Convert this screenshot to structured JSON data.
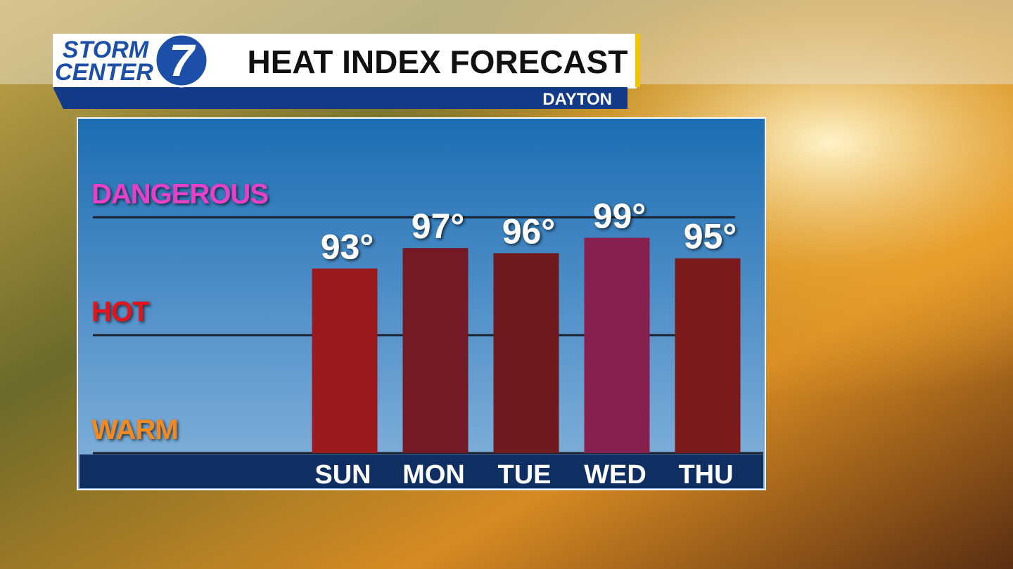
{
  "logo": {
    "line1": "STORM",
    "line2": "CENTER",
    "number": "7"
  },
  "chart_data": {
    "type": "bar",
    "title": "HEAT INDEX FORECAST",
    "subtitle": "DAYTON",
    "categories": [
      "SUN",
      "MON",
      "TUE",
      "WED",
      "THU"
    ],
    "values": [
      93,
      97,
      96,
      99,
      95
    ],
    "value_labels": [
      "93°",
      "97°",
      "96°",
      "99°",
      "95°"
    ],
    "colors": [
      "#9b1a1d",
      "#731a26",
      "#6f1a1f",
      "#86204f",
      "#7a1a1c"
    ],
    "ylim": [
      57,
      121
    ],
    "yticks": [
      {
        "value": 57,
        "label": "WARM"
      },
      {
        "value": 80,
        "label": "HOT"
      },
      {
        "value": 103,
        "label": "DANGEROUS"
      }
    ],
    "ytick_colors": [
      "#f08a24",
      "#e0141c",
      "#e540c8"
    ],
    "grid": true
  }
}
